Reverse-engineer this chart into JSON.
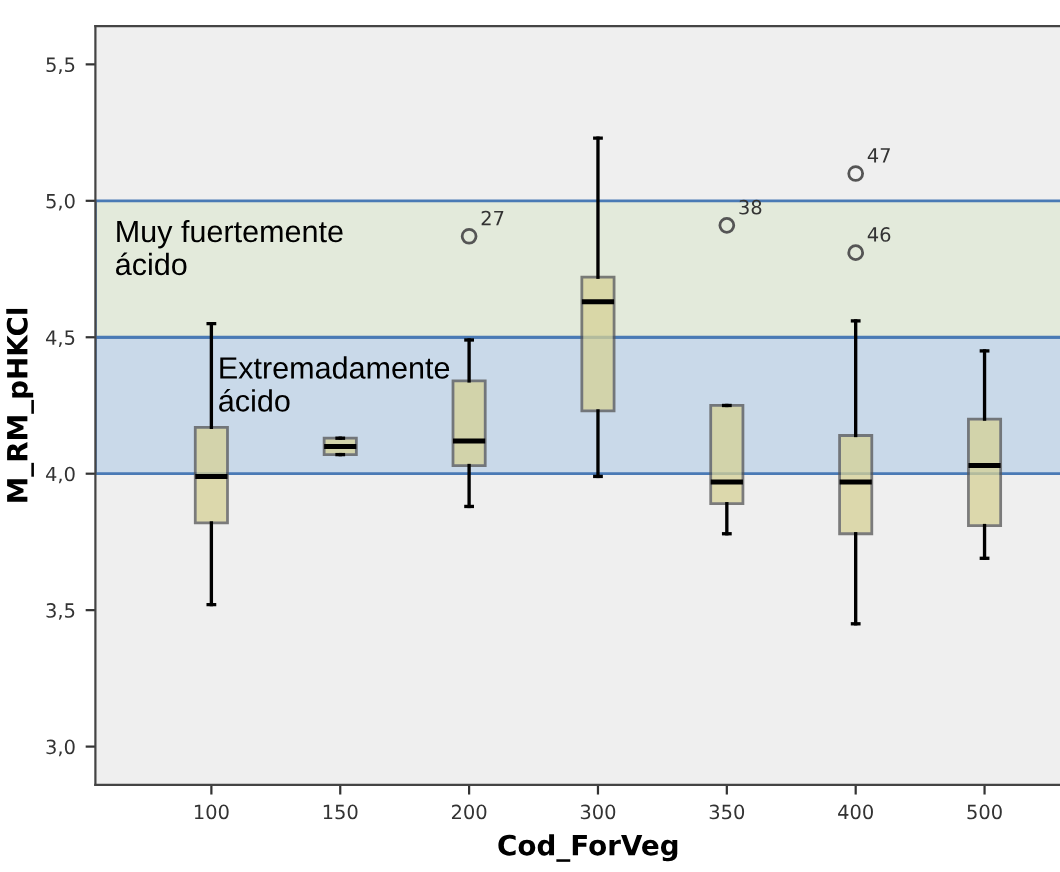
{
  "chart_data": {
    "type": "box",
    "xlabel": "Cod_ForVeg",
    "ylabel": "M_RM_pHKCl",
    "categories": [
      "100",
      "150",
      "200",
      "300",
      "350",
      "400",
      "500"
    ],
    "color": "#d6d196",
    "boxes": [
      {
        "low": 3.52,
        "q1": 3.82,
        "median": 3.99,
        "q3": 4.17,
        "high": 4.55
      },
      {
        "low": 4.07,
        "q1": 4.07,
        "median": 4.1,
        "q3": 4.13,
        "high": 4.13
      },
      {
        "low": 3.88,
        "q1": 4.03,
        "median": 4.12,
        "q3": 4.34,
        "high": 4.49,
        "outliers": [
          4.87
        ]
      },
      {
        "low": 3.99,
        "q1": 4.23,
        "median": 4.63,
        "q3": 4.72,
        "high": 5.23
      },
      {
        "low": 3.78,
        "q1": 3.89,
        "median": 3.97,
        "q3": 4.25,
        "high": 4.25,
        "outliers": [
          4.91
        ]
      },
      {
        "low": 3.45,
        "q1": 3.78,
        "median": 3.97,
        "q3": 4.14,
        "high": 4.56,
        "outliers": [
          5.1,
          4.81
        ]
      },
      {
        "low": 3.69,
        "q1": 3.81,
        "median": 4.03,
        "q3": 4.2,
        "high": 4.45
      }
    ],
    "ylim": [
      2.86,
      5.64
    ],
    "yticks": [
      {
        "value": 3.0,
        "label": "3,0"
      },
      {
        "value": 3.5,
        "label": "3,5"
      },
      {
        "value": 4.0,
        "label": "4,0"
      },
      {
        "value": 4.5,
        "label": "4,5"
      },
      {
        "value": 5.0,
        "label": "5,0"
      },
      {
        "value": 5.5,
        "label": "5,5"
      }
    ],
    "bands": [
      {
        "axis": "y",
        "from": 4.0,
        "to": 4.5,
        "label": "Extremadamente\nácido",
        "color": "#c9d9e9"
      },
      {
        "axis": "y",
        "from": 4.5,
        "to": 5.0,
        "label": "Muy fuertemente\nácido",
        "color": "#e3eadb"
      }
    ],
    "annotations": [
      "27",
      "38",
      "47",
      "46"
    ],
    "grid": false
  }
}
